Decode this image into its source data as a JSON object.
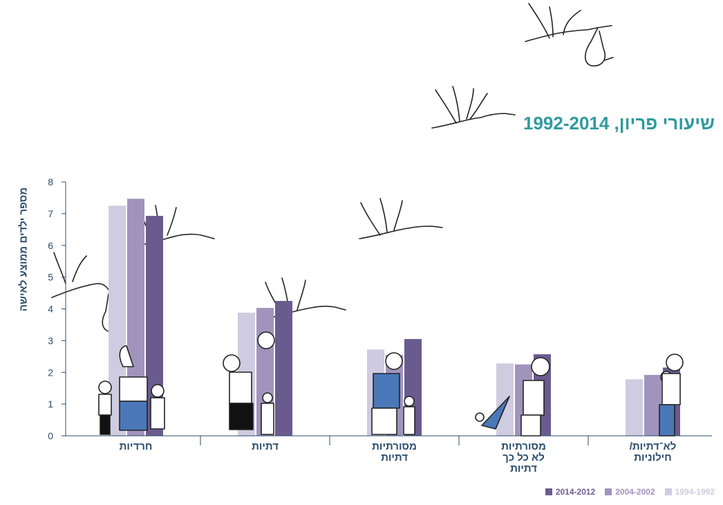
{
  "title": "שיעורי פריון, 1992-2014",
  "chart_data": {
    "type": "bar",
    "ylabel": "מספר ילדים ממוצע לאישה",
    "ylim": [
      0,
      8
    ],
    "yticks": [
      0,
      1,
      2,
      3,
      4,
      5,
      6,
      7,
      8
    ],
    "categories": [
      [
        "חרדיות"
      ],
      [
        "דתיות"
      ],
      [
        "מסורתיות",
        "דתיות"
      ],
      [
        "מסורתיות",
        "לא כל כך",
        "דתיות"
      ],
      [
        "לא־דתיות/",
        "חילוניות"
      ]
    ],
    "series": [
      {
        "name": "1994-1992",
        "color": "#cfcbe0",
        "values": [
          7.25,
          3.88,
          2.72,
          2.28,
          1.78
        ]
      },
      {
        "name": "2004-2002",
        "color": "#a094bd",
        "values": [
          7.47,
          4.03,
          2.55,
          2.25,
          1.92
        ]
      },
      {
        "name": "2014-2012",
        "color": "#6a5b8e",
        "values": [
          6.93,
          4.25,
          3.05,
          2.57,
          2.15
        ]
      }
    ],
    "legend_position": "bottom-right",
    "grid": false
  }
}
